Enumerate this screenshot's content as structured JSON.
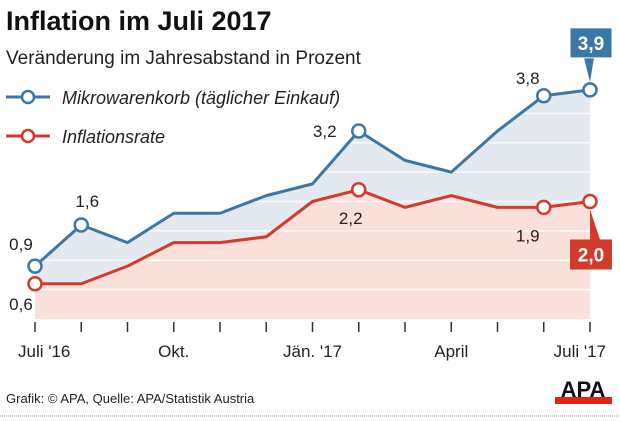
{
  "chart_data": {
    "type": "line",
    "title": "Inflation im Juli 2017",
    "subtitle": "Veränderung im Jahresabstand in Prozent",
    "x": [
      "Jul 16",
      "Aug 16",
      "Sep 16",
      "Okt 16",
      "Nov 16",
      "Dez 16",
      "Jän 17",
      "Feb 17",
      "Mär 17",
      "Apr 17",
      "Mai 17",
      "Jun 17",
      "Jul 17"
    ],
    "tick_labels": [
      {
        "index": 0,
        "text": "Juli '16"
      },
      {
        "index": 3,
        "text": "Okt."
      },
      {
        "index": 6,
        "text": "Jän. '17"
      },
      {
        "index": 9,
        "text": "April"
      },
      {
        "index": 12,
        "text": "Juli '17"
      }
    ],
    "ylim": [
      0,
      4.2
    ],
    "grid": true,
    "legend_placement": "top-left",
    "series": [
      {
        "name": "Mikrowarenkorb (täglicher Einkauf)",
        "color": "#3b78a6",
        "fill": "#e4e9ef",
        "values": [
          0.9,
          1.6,
          1.3,
          1.8,
          1.8,
          2.1,
          2.3,
          3.2,
          2.7,
          2.5,
          3.2,
          3.8,
          3.9
        ],
        "data_labels": [
          {
            "index": 0,
            "text": "0,9"
          },
          {
            "index": 1,
            "text": "1,6"
          },
          {
            "index": 7,
            "text": "3,2"
          },
          {
            "index": 11,
            "text": "3,8"
          }
        ],
        "highlight": {
          "index": 12,
          "text": "3,9"
        }
      },
      {
        "name": "Inflationsrate",
        "color": "#d23b2a",
        "fill": "#fae0da",
        "values": [
          0.6,
          0.6,
          0.9,
          1.3,
          1.3,
          1.4,
          2.0,
          2.2,
          1.9,
          2.1,
          1.9,
          1.9,
          2.0
        ],
        "data_labels": [
          {
            "index": 0,
            "text": "0,6"
          },
          {
            "index": 7,
            "text": "2,2"
          },
          {
            "index": 11,
            "text": "1,9"
          }
        ],
        "highlight": {
          "index": 12,
          "text": "2,0"
        }
      }
    ]
  },
  "footer": {
    "source": "Grafik: © APA, Quelle: APA/Statistik Austria",
    "logo": "APA"
  }
}
